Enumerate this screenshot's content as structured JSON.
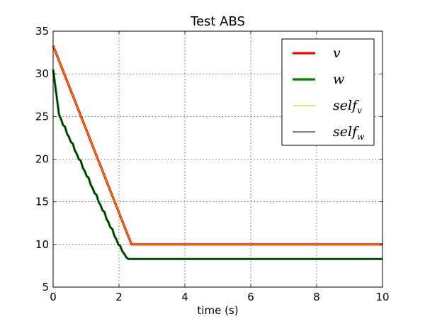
{
  "chart_data": {
    "type": "line",
    "title": "Test ABS",
    "xlabel": "time (s)",
    "ylabel": "",
    "xlim": [
      0,
      10
    ],
    "ylim": [
      5,
      35
    ],
    "xticks": [
      0,
      2,
      4,
      6,
      8,
      10
    ],
    "yticks": [
      5,
      10,
      15,
      20,
      25,
      30,
      35
    ],
    "grid": true,
    "legend_position": "top-right",
    "series": [
      {
        "name": "v",
        "legend_main": "v",
        "legend_sub": "",
        "color": "#ff0000",
        "style": "thick",
        "x": [
          0,
          2.38,
          10
        ],
        "y": [
          33.3,
          10,
          10
        ]
      },
      {
        "name": "w",
        "legend_main": "w",
        "legend_sub": "",
        "color": "#008000",
        "style": "thick",
        "x": [
          0,
          0.18,
          0.24,
          0.3,
          0.36,
          0.42,
          0.48,
          0.54,
          0.6,
          0.66,
          0.72,
          0.78,
          0.84,
          0.9,
          0.96,
          1.02,
          1.08,
          1.14,
          1.2,
          1.26,
          1.32,
          1.38,
          1.44,
          1.5,
          1.56,
          1.62,
          1.68,
          1.74,
          1.8,
          1.86,
          1.92,
          1.98,
          2.04,
          2.1,
          2.16,
          2.22,
          2.28,
          2.34,
          10
        ],
        "y": [
          30.5,
          25.2,
          24.7,
          24.0,
          23.8,
          23.0,
          22.6,
          22.0,
          21.8,
          21.0,
          20.6,
          20.0,
          19.8,
          19.0,
          18.6,
          18.0,
          17.8,
          17.0,
          16.6,
          16.0,
          15.8,
          15.0,
          14.6,
          14.0,
          13.8,
          13.0,
          12.6,
          12.0,
          11.8,
          11.0,
          10.6,
          10.0,
          9.8,
          9.2,
          8.9,
          8.5,
          8.3,
          8.3,
          8.3
        ]
      },
      {
        "name": "self_v",
        "legend_main": "self",
        "legend_sub": "v",
        "color": "#bfbf00",
        "style": "thin",
        "x": [
          0,
          2.38,
          10
        ],
        "y": [
          33.3,
          10,
          10
        ]
      },
      {
        "name": "self_w",
        "legend_main": "self",
        "legend_sub": "w",
        "color": "#000000",
        "style": "thin",
        "x": [
          0,
          0.18,
          0.24,
          0.3,
          0.36,
          0.42,
          0.48,
          0.54,
          0.6,
          0.66,
          0.72,
          0.78,
          0.84,
          0.9,
          0.96,
          1.02,
          1.08,
          1.14,
          1.2,
          1.26,
          1.32,
          1.38,
          1.44,
          1.5,
          1.56,
          1.62,
          1.68,
          1.74,
          1.8,
          1.86,
          1.92,
          1.98,
          2.04,
          2.1,
          2.16,
          2.22,
          2.28,
          2.34,
          10
        ],
        "y": [
          30.5,
          25.2,
          24.7,
          24.0,
          23.8,
          23.0,
          22.6,
          22.0,
          21.8,
          21.0,
          20.6,
          20.0,
          19.8,
          19.0,
          18.6,
          18.0,
          17.8,
          17.0,
          16.6,
          16.0,
          15.8,
          15.0,
          14.6,
          14.0,
          13.8,
          13.0,
          12.6,
          12.0,
          11.8,
          11.0,
          10.6,
          10.0,
          9.8,
          9.2,
          8.9,
          8.5,
          8.3,
          8.3,
          8.3
        ]
      }
    ]
  }
}
